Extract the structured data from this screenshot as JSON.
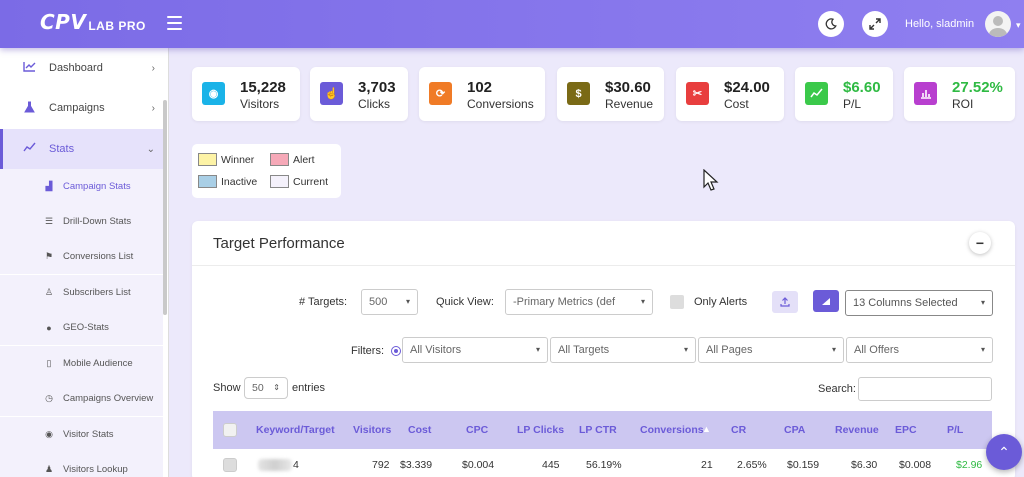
{
  "app": {
    "logo_cp": "CPV",
    "logo_lab": "LAB PRO"
  },
  "topbar": {
    "greeting": "Hello, sladmin"
  },
  "sidebar": {
    "items": [
      {
        "label": "Dashboard",
        "icon": "chart-line-icon"
      },
      {
        "label": "Campaigns",
        "icon": "flask-icon"
      },
      {
        "label": "Stats",
        "icon": "stats-icon"
      }
    ],
    "stats_subitems": [
      {
        "label": "Campaign Stats"
      },
      {
        "label": "Drill-Down Stats"
      },
      {
        "label": "Conversions List"
      },
      {
        "label": "Subscribers List"
      },
      {
        "label": "GEO-Stats"
      },
      {
        "label": "Mobile Audience"
      },
      {
        "label": "Campaigns Overview"
      },
      {
        "label": "Visitor Stats"
      },
      {
        "label": "Visitors Lookup"
      }
    ]
  },
  "stats": [
    {
      "value": "15,228",
      "label": "Visitors",
      "color": "#1ab3e8"
    },
    {
      "value": "3,703",
      "label": "Clicks",
      "color": "#6b5bd8"
    },
    {
      "value": "102",
      "label": "Conversions",
      "color": "#f07b26"
    },
    {
      "value": "$30.60",
      "label": "Revenue",
      "color": "#7a6a16"
    },
    {
      "value": "$24.00",
      "label": "Cost",
      "color": "#e83e3e"
    },
    {
      "value": "$6.60",
      "label": "P/L",
      "color": "#3bc94a"
    },
    {
      "value": "27.52%",
      "label": "ROI",
      "color": "#b83fcf"
    }
  ],
  "legend": {
    "winner": "Winner",
    "alert": "Alert",
    "inactive": "Inactive",
    "current": "Current",
    "colors": {
      "winner": "#fdf3a6",
      "alert": "#f6a9b8",
      "inactive": "#a9cfe6",
      "current": "#f4f1fb"
    }
  },
  "panel": {
    "title": "Target Performance",
    "targets_label": "# Targets:",
    "targets_value": "500",
    "quick_view_label": "Quick View:",
    "quick_view_value": "-Primary Metrics (def",
    "only_alerts_label": "Only Alerts",
    "columns_value": "13 Columns Selected",
    "filters_label": "Filters:",
    "filter_visitors": "All Visitors",
    "filter_targets": "All Targets",
    "filter_pages": "All Pages",
    "filter_offers": "All Offers",
    "show_label": "Show",
    "show_value": "50",
    "entries_label": "entries",
    "search_label": "Search:"
  },
  "table": {
    "headers": [
      "Keyword/Target",
      "Visitors",
      "Cost",
      "CPC",
      "LP Clicks",
      "LP CTR",
      "Conversions",
      "CR",
      "CPA",
      "Revenue",
      "EPC",
      "P/L"
    ],
    "rows": [
      {
        "keyword_suffix": "4",
        "visitors": "792",
        "cost": "$3.339",
        "cpc": "$0.004",
        "lp_clicks": "445",
        "lp_ctr": "56.19%",
        "conversions": "21",
        "cr": "2.65%",
        "cpa": "$0.159",
        "revenue": "$6.30",
        "epc": "$0.008",
        "pl": "$2.96"
      }
    ]
  }
}
